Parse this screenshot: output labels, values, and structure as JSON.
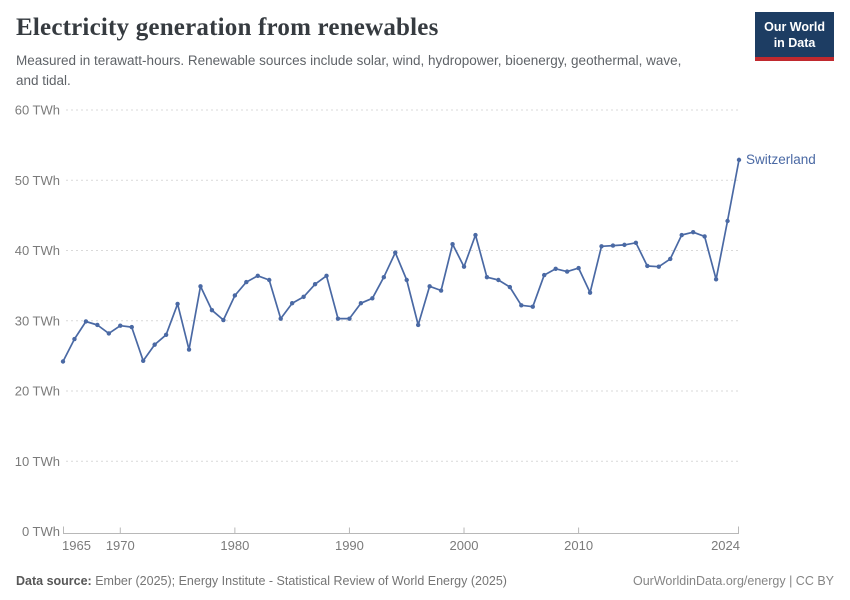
{
  "header": {
    "title": "Electricity generation from renewables",
    "subtitle": "Measured in terawatt-hours. Renewable sources include solar, wind, hydropower, bioenergy, geothermal, wave, and tidal.",
    "logo": {
      "line1": "Our World",
      "line2": "in Data"
    }
  },
  "colors": {
    "accent_line": "#4a69a4",
    "logo_bg": "#1d3d63",
    "logo_accent": "#c0292e",
    "grid": "#d9d9d9",
    "axis": "#b8b8b8",
    "tick_text": "#7b7b7b"
  },
  "chart_data": {
    "type": "line",
    "title": "Electricity generation from renewables",
    "unit": "TWh",
    "xlabel": "",
    "ylabel": "TWh",
    "xlim": [
      1965,
      2024
    ],
    "ylim": [
      0,
      60
    ],
    "grid": "horizontal-dashed",
    "legend_position": "end-of-line-label",
    "x_ticks": [
      {
        "v": 1965,
        "label": "1965"
      },
      {
        "v": 1970,
        "label": "1970"
      },
      {
        "v": 1980,
        "label": "1980"
      },
      {
        "v": 1990,
        "label": "1990"
      },
      {
        "v": 2000,
        "label": "2000"
      },
      {
        "v": 2010,
        "label": "2010"
      },
      {
        "v": 2024,
        "label": "2024"
      }
    ],
    "y_ticks": [
      {
        "v": 0,
        "label": "0 TWh"
      },
      {
        "v": 10,
        "label": "10 TWh"
      },
      {
        "v": 20,
        "label": "20 TWh"
      },
      {
        "v": 30,
        "label": "30 TWh"
      },
      {
        "v": 40,
        "label": "40 TWh"
      },
      {
        "v": 50,
        "label": "50 TWh"
      },
      {
        "v": 60,
        "label": "60 TWh"
      }
    ],
    "series": [
      {
        "name": "Switzerland",
        "color": "#4a69a4",
        "years": [
          1965,
          1966,
          1967,
          1968,
          1969,
          1970,
          1971,
          1972,
          1973,
          1974,
          1975,
          1976,
          1977,
          1978,
          1979,
          1980,
          1981,
          1982,
          1983,
          1984,
          1985,
          1986,
          1987,
          1988,
          1989,
          1990,
          1991,
          1992,
          1993,
          1994,
          1995,
          1996,
          1997,
          1998,
          1999,
          2000,
          2001,
          2002,
          2003,
          2004,
          2005,
          2006,
          2007,
          2008,
          2009,
          2010,
          2011,
          2012,
          2013,
          2014,
          2015,
          2016,
          2017,
          2018,
          2019,
          2020,
          2021,
          2022,
          2023,
          2024
        ],
        "values": [
          24.2,
          27.4,
          29.9,
          29.4,
          28.2,
          29.3,
          29.1,
          24.3,
          26.6,
          28.0,
          32.4,
          25.9,
          34.9,
          31.5,
          30.1,
          33.6,
          35.5,
          36.4,
          35.8,
          30.3,
          32.5,
          33.4,
          35.2,
          36.4,
          30.3,
          30.3,
          32.5,
          33.2,
          36.2,
          39.7,
          35.8,
          29.4,
          34.9,
          34.3,
          40.9,
          37.7,
          42.2,
          36.2,
          35.8,
          34.8,
          32.2,
          32.0,
          36.5,
          37.4,
          37.0,
          37.5,
          34.0,
          40.6,
          40.7,
          40.8,
          41.1,
          37.8,
          37.7,
          38.8,
          42.2,
          42.6,
          42.0,
          35.9,
          44.2,
          52.9
        ]
      }
    ]
  },
  "footer": {
    "datasource_label": "Data source:",
    "datasource_text": " Ember (2025); Energy Institute - Statistical Review of World Energy (2025)",
    "credit": "OurWorldinData.org/energy | CC BY"
  }
}
